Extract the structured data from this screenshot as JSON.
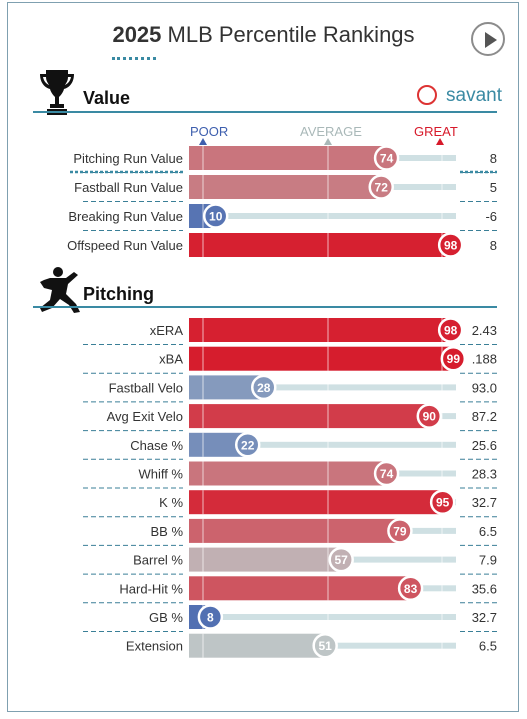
{
  "header": {
    "year": "2025",
    "title_rest": "MLB Percentile Rankings",
    "play_icon": "play-icon"
  },
  "sections": {
    "value": {
      "label": "Value",
      "icon": "trophy-icon"
    },
    "pitching": {
      "label": "Pitching",
      "icon": "pitcher-icon"
    }
  },
  "brand": {
    "text": "savant",
    "icon": "baseball-icon"
  },
  "scale": {
    "poor": "POOR",
    "average": "AVERAGE",
    "great": "GREAT"
  },
  "colors": {
    "poor_blue": "#3e5fae",
    "average_gray": "#bdc9c9",
    "great_red": "#d7192a",
    "teal_rule": "#3a8aa3",
    "track": "#cfe0e3"
  },
  "chart_data": {
    "type": "bar",
    "xlim": [
      0,
      100
    ],
    "groups": [
      {
        "section": "Value",
        "metrics": [
          {
            "label": "Pitching Run Value",
            "percentile": 74,
            "value": "8"
          },
          {
            "label": "Fastball Run Value",
            "percentile": 72,
            "value": "5"
          },
          {
            "label": "Breaking Run Value",
            "percentile": 10,
            "value": "-6"
          },
          {
            "label": "Offspeed Run Value",
            "percentile": 98,
            "value": "8"
          }
        ]
      },
      {
        "section": "Pitching",
        "metrics": [
          {
            "label": "xERA",
            "percentile": 98,
            "value": "2.43"
          },
          {
            "label": "xBA",
            "percentile": 99,
            "value": ".188"
          },
          {
            "label": "Fastball Velo",
            "percentile": 28,
            "value": "93.0"
          },
          {
            "label": "Avg Exit Velo",
            "percentile": 90,
            "value": "87.2"
          },
          {
            "label": "Chase %",
            "percentile": 22,
            "value": "25.6"
          },
          {
            "label": "Whiff %",
            "percentile": 74,
            "value": "28.3"
          },
          {
            "label": "K %",
            "percentile": 95,
            "value": "32.7"
          },
          {
            "label": "BB %",
            "percentile": 79,
            "value": "6.5"
          },
          {
            "label": "Barrel %",
            "percentile": 57,
            "value": "7.9"
          },
          {
            "label": "Hard-Hit %",
            "percentile": 83,
            "value": "35.6"
          },
          {
            "label": "GB %",
            "percentile": 8,
            "value": "32.7"
          },
          {
            "label": "Extension",
            "percentile": 51,
            "value": "6.5"
          }
        ]
      }
    ]
  }
}
